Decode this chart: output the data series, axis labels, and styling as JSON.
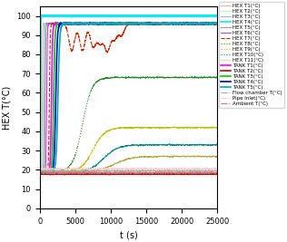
{
  "title": "",
  "xlabel": "t (s)",
  "ylabel": "HEX T(°C)",
  "xlim": [
    0,
    25000
  ],
  "ylim": [
    0,
    105
  ],
  "yticks": [
    0,
    10,
    20,
    30,
    40,
    50,
    60,
    70,
    80,
    90,
    100
  ],
  "xticks": [
    0,
    5000,
    10000,
    15000,
    20000,
    25000
  ],
  "figsize": [
    3.16,
    2.67
  ],
  "dpi": 100,
  "series": [
    {
      "label": "HEX T1(°C)",
      "color": "#ffaaaa",
      "lw": 0.8,
      "ls": "-",
      "t_start": 200,
      "t_rise": 300,
      "v_init": 19,
      "v_final": 96,
      "flat": true,
      "dips": []
    },
    {
      "label": "HEX T2(°C)",
      "color": "#aaffaa",
      "lw": 0.8,
      "ls": "-",
      "t_start": 300,
      "t_rise": 350,
      "v_init": 19,
      "v_final": 96,
      "flat": true,
      "dips": []
    },
    {
      "label": "HEX T3(°C)",
      "color": "#aaaaff",
      "lw": 0.8,
      "ls": "-",
      "t_start": 400,
      "t_rise": 400,
      "v_init": 19,
      "v_final": 96,
      "flat": true,
      "dips": []
    },
    {
      "label": "HEX T4(°C)",
      "color": "#00eeff",
      "lw": 1.2,
      "ls": "-",
      "t_start": 50,
      "t_rise": 150,
      "v_init": 19,
      "v_final": 100,
      "flat": true,
      "dips": []
    },
    {
      "label": "HEX T5(°C)",
      "color": "#999999",
      "lw": 0.8,
      "ls": "-",
      "t_start": 550,
      "t_rise": 450,
      "v_init": 19,
      "v_final": 96,
      "flat": true,
      "dips": []
    },
    {
      "label": "HEX T6(°C)",
      "color": "#cc44cc",
      "lw": 0.8,
      "ls": "-",
      "t_start": 700,
      "t_rise": 550,
      "v_init": 19,
      "v_final": 96,
      "flat": true,
      "dips": []
    },
    {
      "label": "HEX T7(°C)",
      "color": "#cc2200",
      "lw": 0.8,
      "ls": "--",
      "t_start": 1000,
      "t_rise": 700,
      "v_init": 19,
      "v_final": 96,
      "flat": false,
      "dips": [
        [
          4500,
          14
        ],
        [
          6000,
          14
        ],
        [
          7500,
          12
        ],
        [
          8500,
          10
        ],
        [
          9500,
          14
        ],
        [
          10500,
          8
        ],
        [
          11500,
          6
        ]
      ]
    },
    {
      "label": "HEX T8(°C)",
      "color": "#228822",
      "lw": 0.8,
      "ls": ":",
      "t_start": 2000,
      "t_rise": 8000,
      "v_init": 19,
      "v_final": 68,
      "flat": false,
      "dips": []
    },
    {
      "label": "HEX T9(°C)",
      "color": "#bbbb00",
      "lw": 0.8,
      "ls": ":",
      "t_start": 2500,
      "t_rise": 10000,
      "v_init": 19,
      "v_final": 42,
      "flat": false,
      "dips": []
    },
    {
      "label": "HEX T10(°C)",
      "color": "#008888",
      "lw": 0.8,
      "ls": ":",
      "t_start": 3000,
      "t_rise": 12000,
      "v_init": 19,
      "v_final": 33,
      "flat": false,
      "dips": []
    },
    {
      "label": "HEX T11(°C)",
      "color": "#aaaa44",
      "lw": 0.8,
      "ls": ":",
      "t_start": 3500,
      "t_rise": 14000,
      "v_init": 19,
      "v_final": 27,
      "flat": false,
      "dips": []
    },
    {
      "label": "TANK T1(°C)",
      "color": "#ff00ff",
      "lw": 1.2,
      "ls": "-",
      "t_start": 1200,
      "t_rise": 900,
      "v_init": 19,
      "v_final": 96,
      "flat": true,
      "dips": []
    },
    {
      "label": "TANK T2(°C)",
      "color": "#cc0000",
      "lw": 1.2,
      "ls": "-",
      "t_start": 0,
      "t_rise": 1,
      "v_init": 18,
      "v_final": 18,
      "flat": true,
      "dips": []
    },
    {
      "label": "TANK T3(°C)",
      "color": "#00cc00",
      "lw": 1.2,
      "ls": "-",
      "t_start": 1400,
      "t_rise": 1100,
      "v_init": 19,
      "v_final": 96,
      "flat": true,
      "dips": []
    },
    {
      "label": "TANK T4(°C)",
      "color": "#0000cc",
      "lw": 1.2,
      "ls": "-",
      "t_start": 1600,
      "t_rise": 1300,
      "v_init": 19,
      "v_final": 96,
      "flat": true,
      "dips": []
    },
    {
      "label": "TANK T5(°C)",
      "color": "#00aaaa",
      "lw": 1.2,
      "ls": "-",
      "t_start": 1800,
      "t_rise": 1500,
      "v_init": 19,
      "v_final": 96,
      "flat": true,
      "dips": []
    },
    {
      "label": "Flow chamber T(°C)",
      "color": "#aaaaaa",
      "lw": 0.8,
      "ls": "-.",
      "t_start": 0,
      "t_rise": 1,
      "v_init": 19.5,
      "v_final": 19.5,
      "flat": true,
      "dips": []
    },
    {
      "label": "Pipe Inlet(°C)",
      "color": "#ffcccc",
      "lw": 0.8,
      "ls": "-.",
      "t_start": 0,
      "t_rise": 1,
      "v_init": 20.5,
      "v_final": 20.5,
      "flat": true,
      "dips": []
    },
    {
      "label": "Ambient T(°C)",
      "color": "#cc7777",
      "lw": 0.8,
      "ls": "-.",
      "t_start": 0,
      "t_rise": 1,
      "v_init": 18.5,
      "v_final": 18.5,
      "flat": true,
      "dips": []
    }
  ]
}
